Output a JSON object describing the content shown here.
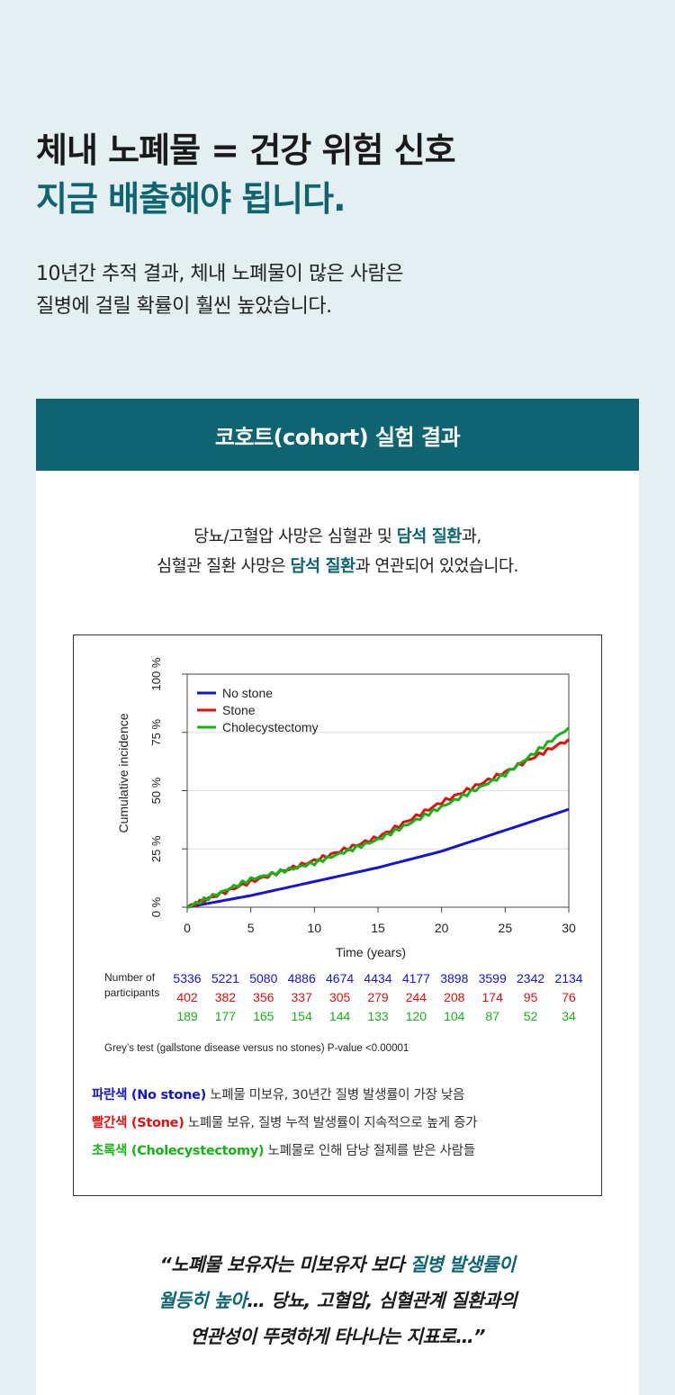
{
  "headline": {
    "line1": "체내 노폐물 = 건강 위험 신호",
    "line2": "지금 배출해야 됩니다."
  },
  "subtext": {
    "line1": "10년간 추적 결과, 체내 노폐물이 많은 사람은",
    "line2": "질병에 걸릴 확률이 훨씬 높았습니다."
  },
  "panel": {
    "title": "코호트(cohort) 실험 결과",
    "desc": {
      "l1a": "당뇨/고혈압 사망은 심혈관 및 ",
      "l1b": "담석 질환",
      "l1c": "과,",
      "l2a": "심혈관 질환 사망은 ",
      "l2b": "담석 질환",
      "l2c": "과 연관되어 있었습니다."
    },
    "legend_desc": {
      "blue_label": "파란색 (No stone)",
      "blue_text": " 노폐물 미보유, 30년간 질병 발생률이 가장 낮음",
      "red_label": "빨간색 (Stone)",
      "red_text": " 노폐물 보유, 질병 누적 발생률이 지속적으로 높게 증가",
      "green_label": "초록색 (Cholecystectomy)",
      "green_text": " 노폐물로 인해 담낭 절제를 받은 사람들"
    },
    "quote": {
      "a": "“노폐물 보유자는 미보유자 보다 ",
      "b": "질병 발생률이",
      "c": "월등히 높아",
      "d": "… 당뇨, 고혈압, 심혈관계 질환과의",
      "e": "연관성이 뚜렷하게 타나나는 지표로…”"
    }
  },
  "colors": {
    "teal": "#0e6470",
    "blue": "#1414d2",
    "red": "#e01010",
    "green": "#14b414"
  },
  "chart_data": {
    "type": "line",
    "xlabel": "Time (years)",
    "ylabel": "Cumulative incidence",
    "xlim": [
      0,
      30
    ],
    "ylim": [
      0,
      100
    ],
    "xticks": [
      0,
      5,
      10,
      15,
      20,
      25,
      30
    ],
    "yticks": [
      0,
      25,
      50,
      75,
      100
    ],
    "ytick_labels": [
      "0 %",
      "25 %",
      "50 %",
      "75 %",
      "100 %"
    ],
    "grid": true,
    "legend_position": "top-left",
    "series": [
      {
        "name": "No stone",
        "color": "#1414d2",
        "x": [
          0,
          5,
          10,
          15,
          20,
          25,
          30
        ],
        "y": [
          0,
          5,
          11,
          17,
          24,
          33,
          42
        ]
      },
      {
        "name": "Stone",
        "color": "#e01010",
        "x": [
          0,
          5,
          10,
          15,
          20,
          25,
          30
        ],
        "y": [
          0,
          11,
          20,
          30,
          45,
          58,
          72
        ]
      },
      {
        "name": "Cholecystectomy",
        "color": "#14b414",
        "x": [
          0,
          5,
          10,
          15,
          20,
          25,
          30
        ],
        "y": [
          0,
          12,
          19,
          29,
          43,
          57,
          77
        ]
      }
    ],
    "risk_table": {
      "label": [
        "Number of",
        "participants"
      ],
      "rows": [
        {
          "color": "#1414d2",
          "values": [
            "5336",
            "5221",
            "5080",
            "4886",
            "4674",
            "4434",
            "4177",
            "3898",
            "3599",
            "2342",
            "2134"
          ]
        },
        {
          "color": "#e01010",
          "values": [
            "402",
            "382",
            "356",
            "337",
            "305",
            "279",
            "244",
            "208",
            "174",
            "95",
            "76"
          ]
        },
        {
          "color": "#14b414",
          "values": [
            "189",
            "177",
            "165",
            "154",
            "144",
            "133",
            "120",
            "104",
            "87",
            "52",
            "34"
          ]
        }
      ]
    },
    "footnote": "Grey’s test (gallstone disease versus no stones) P-value <0.00001"
  }
}
